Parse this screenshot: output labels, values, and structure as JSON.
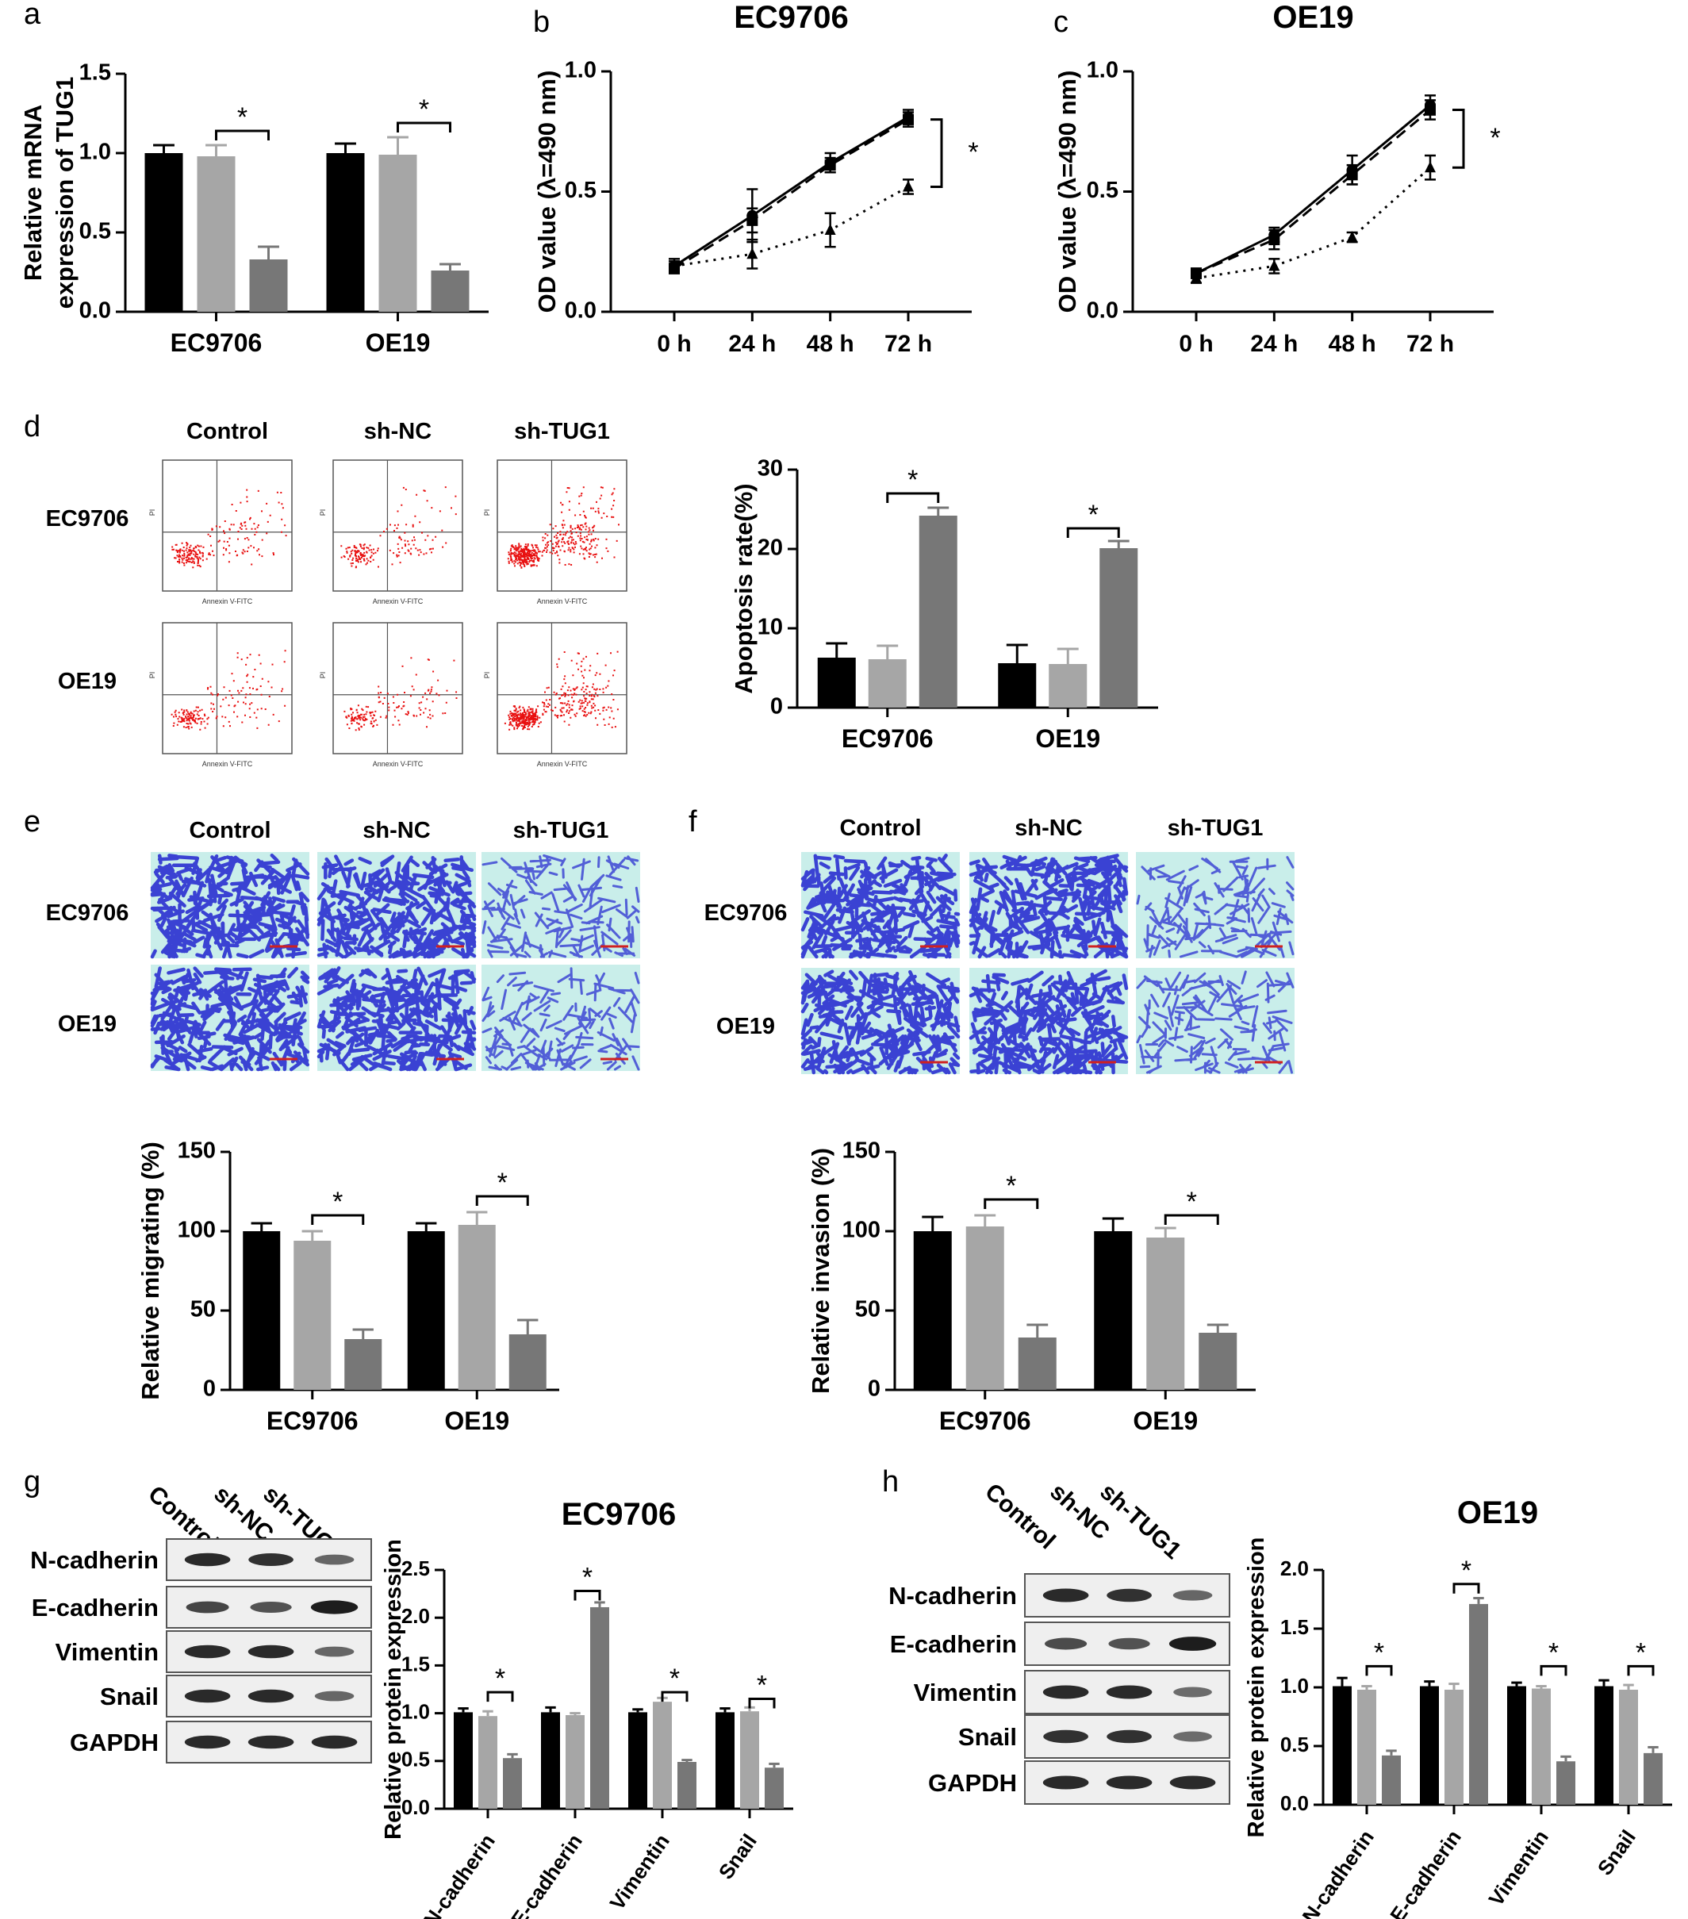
{
  "panel_letters": {
    "a": "a",
    "b": "b",
    "c": "c",
    "d": "d",
    "e": "e",
    "f": "f",
    "g": "g",
    "h": "h"
  },
  "groups": [
    "Control",
    "sh-NC",
    "sh-TUG1"
  ],
  "cell_lines": [
    "EC9706",
    "OE19"
  ],
  "colors": {
    "control": "#000000",
    "shnc": "#a6a6a6",
    "shtug1": "#777777",
    "flow": "#e81010",
    "crystal": "#2a2fd0",
    "crystal_bg": "#c9eeea"
  },
  "flow": {
    "x_axis_label": "Annexin V-FITC",
    "y_axis_label": "PI"
  },
  "chart_data": [
    {
      "id": "a",
      "type": "bar",
      "title": "",
      "xlabel": "",
      "ylabel": "Relative  mRNA\nexpression of TUG1",
      "ylim": [
        0,
        1.5
      ],
      "yticks": [
        "0.0",
        "0.5",
        "1.0",
        "1.5"
      ],
      "categories": [
        "EC9706",
        "OE19"
      ],
      "series": [
        {
          "values": [
            1.0,
            1.0
          ],
          "errors": [
            0.05,
            0.06
          ]
        },
        {
          "values": [
            0.98,
            0.99
          ],
          "errors": [
            0.07,
            0.11
          ]
        },
        {
          "values": [
            0.33,
            0.26
          ],
          "errors": [
            0.08,
            0.04
          ]
        }
      ],
      "sig": [
        {
          "cat": 0,
          "from": 1,
          "to": 2,
          "y": 1.14,
          "label": "*"
        },
        {
          "cat": 1,
          "from": 1,
          "to": 2,
          "y": 1.19,
          "label": "*"
        }
      ]
    },
    {
      "id": "b",
      "type": "line",
      "title": "EC9706",
      "xlabel": "",
      "ylabel": "OD value (λ=490 nm)",
      "ylim": [
        0,
        1.0
      ],
      "yticks": [
        "0.0",
        "0.5",
        "1.0"
      ],
      "categories": [
        "0 h",
        "24 h",
        "48 h",
        "72 h"
      ],
      "series": [
        {
          "values": [
            0.19,
            0.4,
            0.62,
            0.81
          ],
          "errors": [
            0.03,
            0.11,
            0.04,
            0.03
          ],
          "style": "solid",
          "marker": "circle"
        },
        {
          "values": [
            0.18,
            0.38,
            0.61,
            0.8
          ],
          "errors": [
            0.02,
            0.05,
            0.03,
            0.03
          ],
          "style": "dashed",
          "marker": "square"
        },
        {
          "values": [
            0.19,
            0.24,
            0.34,
            0.52
          ],
          "errors": [
            0.02,
            0.06,
            0.07,
            0.03
          ],
          "style": "dotted",
          "marker": "triangle"
        }
      ],
      "bracket": {
        "top": 0.8,
        "bottom": 0.52,
        "label": "*"
      }
    },
    {
      "id": "c",
      "type": "line",
      "title": "OE19",
      "xlabel": "",
      "ylabel": "OD value (λ=490 nm)",
      "ylim": [
        0,
        1.0
      ],
      "yticks": [
        "0.0",
        "0.5",
        "1.0"
      ],
      "categories": [
        "0 h",
        "24 h",
        "48 h",
        "72 h"
      ],
      "series": [
        {
          "values": [
            0.16,
            0.32,
            0.59,
            0.86
          ],
          "errors": [
            0.02,
            0.03,
            0.06,
            0.04
          ],
          "style": "solid",
          "marker": "circle"
        },
        {
          "values": [
            0.16,
            0.3,
            0.57,
            0.84
          ],
          "errors": [
            0.02,
            0.04,
            0.04,
            0.04
          ],
          "style": "dashed",
          "marker": "square"
        },
        {
          "values": [
            0.14,
            0.19,
            0.31,
            0.6
          ],
          "errors": [
            0.02,
            0.03,
            0.02,
            0.05
          ],
          "style": "dotted",
          "marker": "triangle"
        }
      ],
      "bracket": {
        "top": 0.84,
        "bottom": 0.6,
        "label": "*"
      }
    },
    {
      "id": "d",
      "type": "bar",
      "title": "",
      "xlabel": "",
      "ylabel": "Apoptosis rate(%)",
      "ylim": [
        0,
        30
      ],
      "yticks": [
        "0",
        "10",
        "20",
        "30"
      ],
      "categories": [
        "EC9706",
        "OE19"
      ],
      "series": [
        {
          "values": [
            6.3,
            5.6
          ],
          "errors": [
            1.8,
            2.3
          ]
        },
        {
          "values": [
            6.1,
            5.5
          ],
          "errors": [
            1.7,
            1.9
          ]
        },
        {
          "values": [
            24.2,
            20.1
          ],
          "errors": [
            1.0,
            0.9
          ]
        }
      ],
      "sig": [
        {
          "cat": 0,
          "from": 1,
          "to": 2,
          "y": 27.0,
          "label": "*"
        },
        {
          "cat": 1,
          "from": 1,
          "to": 2,
          "y": 22.6,
          "label": "*"
        }
      ]
    },
    {
      "id": "e",
      "type": "bar",
      "title": "",
      "xlabel": "",
      "ylabel": "Relative migrating (%)",
      "ylim": [
        0,
        150
      ],
      "yticks": [
        "0",
        "50",
        "100",
        "150"
      ],
      "categories": [
        "EC9706",
        "OE19"
      ],
      "series": [
        {
          "values": [
            100,
            100
          ],
          "errors": [
            5,
            5
          ]
        },
        {
          "values": [
            94,
            104
          ],
          "errors": [
            6,
            8
          ]
        },
        {
          "values": [
            32,
            35
          ],
          "errors": [
            6,
            9
          ]
        }
      ],
      "sig": [
        {
          "cat": 0,
          "from": 1,
          "to": 2,
          "y": 110,
          "label": "*"
        },
        {
          "cat": 1,
          "from": 1,
          "to": 2,
          "y": 122,
          "label": "*"
        }
      ]
    },
    {
      "id": "f",
      "type": "bar",
      "title": "",
      "xlabel": "",
      "ylabel": "Relative invasion (%)",
      "ylim": [
        0,
        150
      ],
      "yticks": [
        "0",
        "50",
        "100",
        "150"
      ],
      "categories": [
        "EC9706",
        "OE19"
      ],
      "series": [
        {
          "values": [
            100,
            100
          ],
          "errors": [
            9,
            8
          ]
        },
        {
          "values": [
            103,
            96
          ],
          "errors": [
            7,
            6
          ]
        },
        {
          "values": [
            33,
            36
          ],
          "errors": [
            8,
            5
          ]
        }
      ],
      "sig": [
        {
          "cat": 0,
          "from": 1,
          "to": 2,
          "y": 120,
          "label": "*"
        },
        {
          "cat": 1,
          "from": 1,
          "to": 2,
          "y": 110,
          "label": "*"
        }
      ]
    },
    {
      "id": "g",
      "type": "bar",
      "title": "EC9706",
      "xlabel": "",
      "ylabel": "Relative protein expression",
      "ylim": [
        0,
        2.5
      ],
      "yticks": [
        "0.0",
        "0.5",
        "1.0",
        "1.5",
        "2.0",
        "2.5"
      ],
      "categories": [
        "N-cadherin",
        "E-cadherin",
        "Vimentin",
        "Snail"
      ],
      "series": [
        {
          "values": [
            1.01,
            1.01,
            1.01,
            1.01
          ],
          "errors": [
            0.04,
            0.05,
            0.03,
            0.04
          ]
        },
        {
          "values": [
            0.97,
            0.98,
            1.12,
            1.02
          ],
          "errors": [
            0.05,
            0.02,
            0.04,
            0.04
          ]
        },
        {
          "values": [
            0.53,
            2.11,
            0.49,
            0.43
          ],
          "errors": [
            0.04,
            0.05,
            0.02,
            0.04
          ]
        }
      ],
      "sig": [
        {
          "cat": 0,
          "from": 1,
          "to": 2,
          "y": 1.22,
          "label": "*"
        },
        {
          "cat": 1,
          "from": 1,
          "to": 2,
          "y": 2.28,
          "label": "*"
        },
        {
          "cat": 2,
          "from": 1,
          "to": 2,
          "y": 1.22,
          "label": "*"
        },
        {
          "cat": 3,
          "from": 1,
          "to": 2,
          "y": 1.15,
          "label": "*"
        }
      ]
    },
    {
      "id": "h",
      "type": "bar",
      "title": "OE19",
      "xlabel": "",
      "ylabel": "Relative protein expression",
      "ylim": [
        0,
        2.0
      ],
      "yticks": [
        "0.0",
        "0.5",
        "1.0",
        "1.5",
        "2.0"
      ],
      "categories": [
        "N-cadherin",
        "E-cadherin",
        "Vimentin",
        "Snail"
      ],
      "series": [
        {
          "values": [
            1.01,
            1.01,
            1.01,
            1.01
          ],
          "errors": [
            0.07,
            0.04,
            0.03,
            0.05
          ]
        },
        {
          "values": [
            0.98,
            0.98,
            0.99,
            0.98
          ],
          "errors": [
            0.03,
            0.05,
            0.02,
            0.04
          ]
        },
        {
          "values": [
            0.42,
            1.71,
            0.37,
            0.44
          ],
          "errors": [
            0.04,
            0.05,
            0.04,
            0.05
          ]
        }
      ],
      "sig": [
        {
          "cat": 0,
          "from": 1,
          "to": 2,
          "y": 1.18,
          "label": "*"
        },
        {
          "cat": 1,
          "from": 1,
          "to": 2,
          "y": 1.88,
          "label": "*"
        },
        {
          "cat": 2,
          "from": 1,
          "to": 2,
          "y": 1.18,
          "label": "*"
        },
        {
          "cat": 3,
          "from": 1,
          "to": 2,
          "y": 1.18,
          "label": "*"
        }
      ]
    }
  ],
  "blots": {
    "g": {
      "proteins": [
        "N-cadherin",
        "E-cadherin",
        "Vimentin",
        "Snail",
        "GAPDH"
      ],
      "band_strength": [
        [
          0.9,
          0.85,
          0.45
        ],
        [
          0.7,
          0.6,
          1.0
        ],
        [
          0.9,
          0.9,
          0.45
        ],
        [
          0.9,
          0.9,
          0.45
        ],
        [
          0.9,
          0.9,
          0.9
        ]
      ]
    },
    "h": {
      "proteins": [
        "N-cadherin",
        "E-cadherin",
        "Vimentin",
        "Snail",
        "GAPDH"
      ],
      "band_strength": [
        [
          0.9,
          0.85,
          0.45
        ],
        [
          0.65,
          0.6,
          1.0
        ],
        [
          0.9,
          0.9,
          0.4
        ],
        [
          0.85,
          0.85,
          0.4
        ],
        [
          0.9,
          0.9,
          0.9
        ]
      ]
    }
  }
}
